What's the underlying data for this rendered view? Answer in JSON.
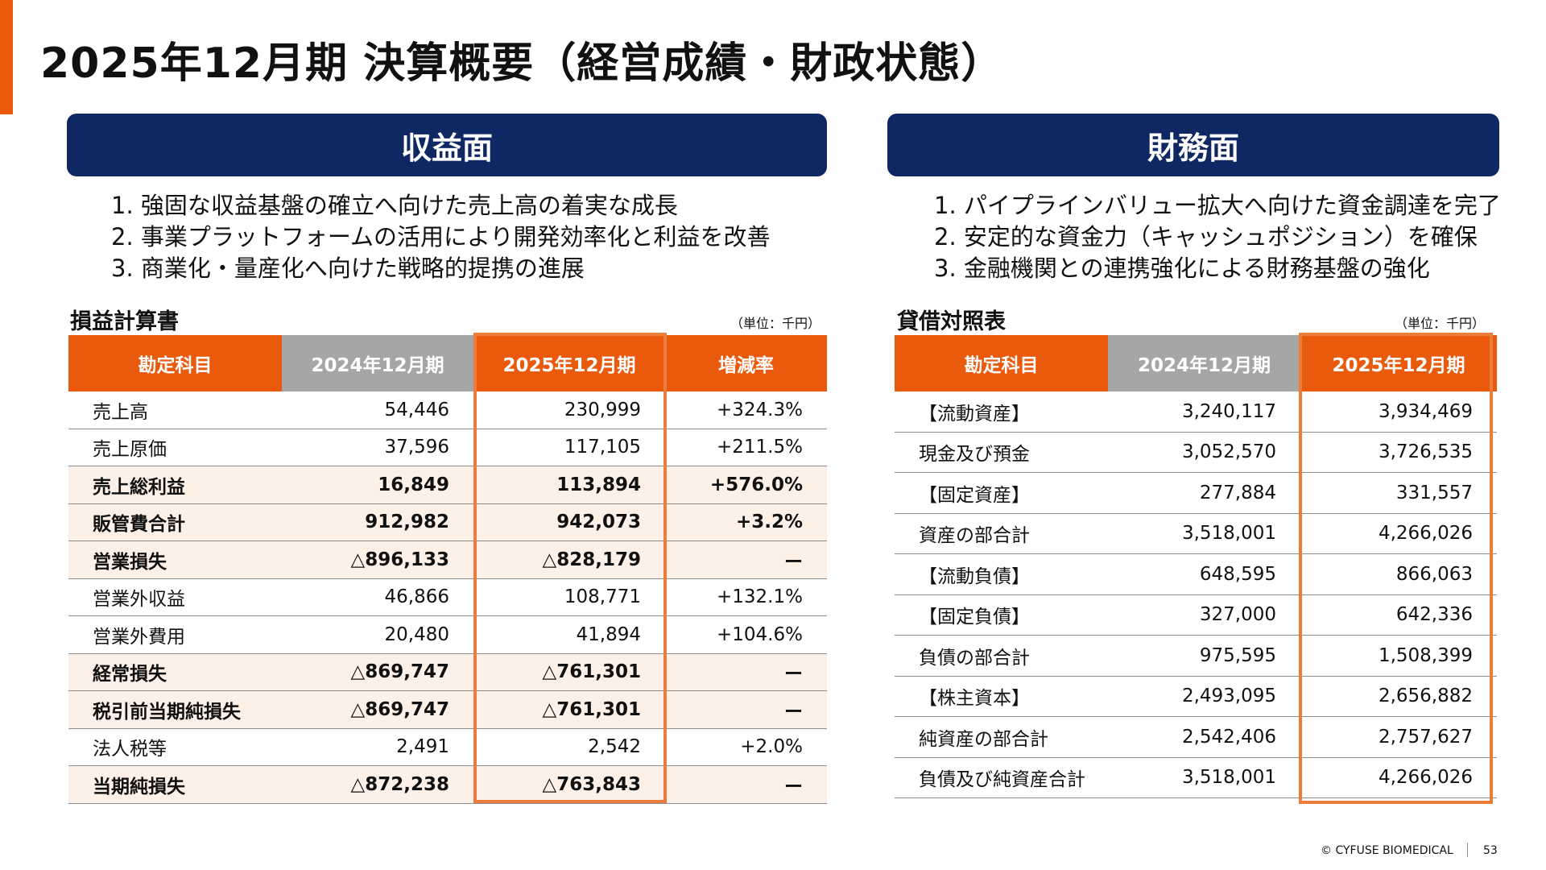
{
  "title": "2025年12月期 決算概要（経営成績・財政状態）",
  "left_panel": {
    "header": "収益面",
    "points": [
      "1. 強固な収益基盤の確立へ向けた売上高の着実な成長",
      "2. 事業プラットフォームの活用により開発効率化と利益を改善",
      "3. 商業化・量産化へ向けた戦略的提携の進展"
    ],
    "section_title": "損益計算書",
    "unit": "（単位：千円）",
    "columns": [
      "勘定科目",
      "2024年12月期",
      "2025年12月期",
      "増減率"
    ],
    "rows": [
      {
        "label": "売上高",
        "prev": "54,446",
        "curr": "230,999",
        "change": "+324.3%"
      },
      {
        "label": "売上原価",
        "prev": "37,596",
        "curr": "117,105",
        "change": "+211.5%"
      },
      {
        "label": "売上総利益",
        "prev": "16,849",
        "curr": "113,894",
        "change": "+576.0%",
        "bold": true
      },
      {
        "label": "販管費合計",
        "prev": "912,982",
        "curr": "942,073",
        "change": "+3.2%",
        "bold": true
      },
      {
        "label": "営業損失",
        "prev": "△896,133",
        "curr": "△828,179",
        "change": "ー",
        "bold": true
      },
      {
        "label": "営業外収益",
        "prev": "46,866",
        "curr": "108,771",
        "change": "+132.1%"
      },
      {
        "label": "営業外費用",
        "prev": "20,480",
        "curr": "41,894",
        "change": "+104.6%"
      },
      {
        "label": "経常損失",
        "prev": "△869,747",
        "curr": "△761,301",
        "change": "ー",
        "bold": true
      },
      {
        "label": "税引前当期純損失",
        "prev": "△869,747",
        "curr": "△761,301",
        "change": "ー",
        "bold": true
      },
      {
        "label": "法人税等",
        "prev": "2,491",
        "curr": "2,542",
        "change": "+2.0%"
      },
      {
        "label": "当期純損失",
        "prev": "△872,238",
        "curr": "△763,843",
        "change": "ー",
        "bold": true
      }
    ]
  },
  "right_panel": {
    "header": "財務面",
    "points": [
      "1. パイプラインバリュー拡大へ向けた資金調達を完了",
      "2. 安定的な資金力（キャッシュポジション）を確保",
      "3. 金融機関との連携強化による財務基盤の強化"
    ],
    "section_title": "貸借対照表",
    "unit": "（単位：千円）",
    "columns": [
      "勘定科目",
      "2024年12月期",
      "2025年12月期"
    ],
    "rows": [
      {
        "label": "【流動資産】",
        "prev": "3,240,117",
        "curr": "3,934,469"
      },
      {
        "label": "現金及び預金",
        "prev": "3,052,570",
        "curr": "3,726,535"
      },
      {
        "label": "【固定資産】",
        "prev": "277,884",
        "curr": "331,557"
      },
      {
        "label": "資産の部合計",
        "prev": "3,518,001",
        "curr": "4,266,026"
      },
      {
        "label": "【流動負債】",
        "prev": "648,595",
        "curr": "866,063"
      },
      {
        "label": "【固定負債】",
        "prev": "327,000",
        "curr": "642,336"
      },
      {
        "label": "負債の部合計",
        "prev": "975,595",
        "curr": "1,508,399"
      },
      {
        "label": "【株主資本】",
        "prev": "2,493,095",
        "curr": "2,656,882"
      },
      {
        "label": "純資産の部合計",
        "prev": "2,542,406",
        "curr": "2,757,627"
      },
      {
        "label": "負債及び純資産合計",
        "prev": "3,518,001",
        "curr": "4,266,026"
      }
    ]
  },
  "footer": {
    "copyright": "© CYFUSE BIOMEDICAL",
    "page_number": "53"
  },
  "colors": {
    "accent": "#ea5a0c",
    "navy": "#0f2762",
    "gray_header": "#a6a6a6",
    "row_shade": "#fdf0e6",
    "highlight_border": "#ea7d3c"
  }
}
